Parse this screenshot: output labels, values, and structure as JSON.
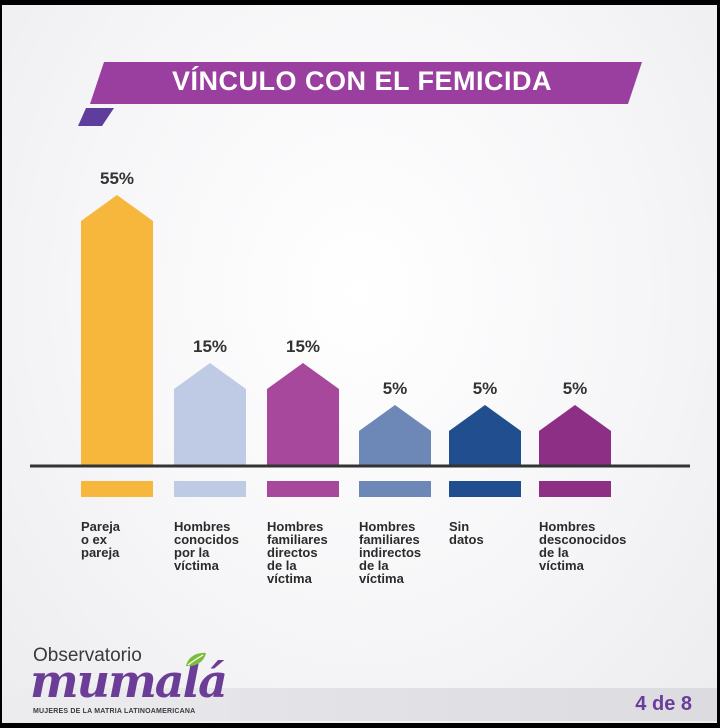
{
  "title": "VÍNCULO CON EL FEMICIDA",
  "colors": {
    "banner": "#9a3fa0",
    "banner_dark": "#6a3ea0",
    "baseline": "#333333",
    "brand": "#6b3d97"
  },
  "chart_data": {
    "type": "bar",
    "title": "VÍNCULO CON EL FEMICIDA",
    "categories": [
      "Pareja\no ex\npareja",
      "Hombres\nconocidos\npor la\nvíctima",
      "Hombres\nfamiliares\ndirectos\nde la\nvíctima",
      "Hombres\nfamiliares\nindirectos\nde la\nvíctima",
      "Sin\ndatos",
      "Hombres\ndesconocidos\nde la\nvíctima"
    ],
    "values": [
      55,
      15,
      15,
      5,
      5,
      5
    ],
    "value_labels": [
      "55%",
      "15%",
      "15%",
      "5%",
      "5%",
      "5%"
    ],
    "bar_colors": [
      "#f6b73c",
      "#bfcbe4",
      "#a8489c",
      "#6d87b7",
      "#214e8e",
      "#8e2f86"
    ],
    "unit": "%",
    "grid": false,
    "legend": "none"
  },
  "footer": {
    "logo_top": "Observatorio",
    "logo_word": "mumalá",
    "logo_sub": "MUJERES DE LA MATRIA LATINOAMERICANA",
    "page": "4 de 8"
  }
}
